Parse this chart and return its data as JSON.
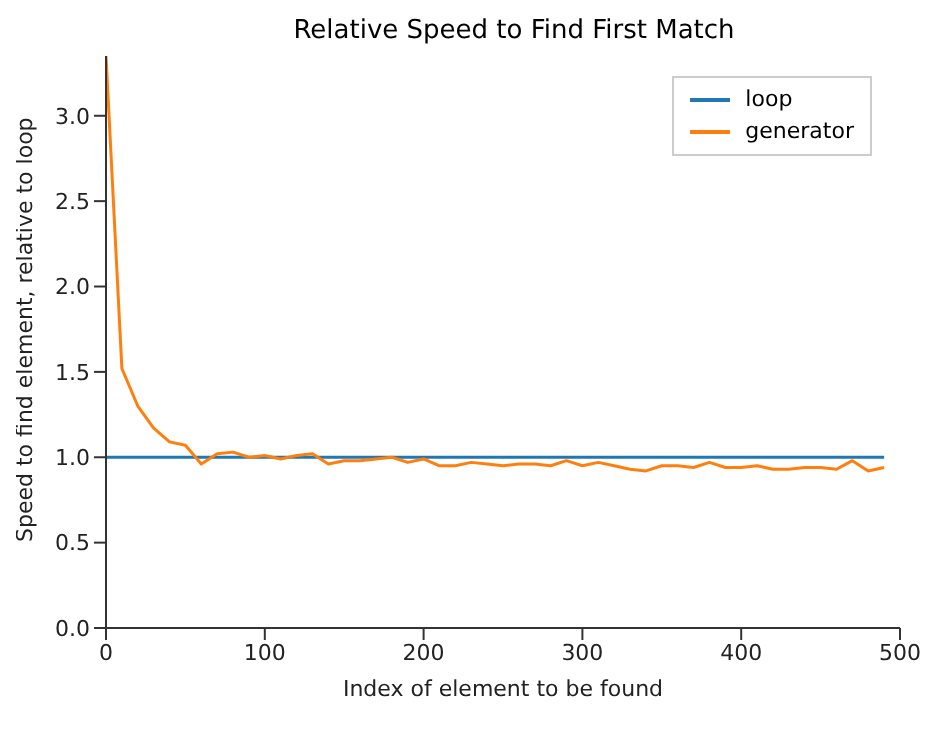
{
  "chart_data": {
    "type": "line",
    "title": "Relative Speed to Find First Match",
    "xlabel": "Index of element to be found",
    "ylabel": "Speed to find element, relative to loop",
    "x": [
      0,
      10,
      20,
      30,
      40,
      50,
      60,
      70,
      80,
      90,
      100,
      110,
      120,
      130,
      140,
      150,
      160,
      170,
      180,
      190,
      200,
      210,
      220,
      230,
      240,
      250,
      260,
      270,
      280,
      290,
      300,
      310,
      320,
      330,
      340,
      350,
      360,
      370,
      380,
      390,
      400,
      410,
      420,
      430,
      440,
      450,
      460,
      470,
      480,
      490
    ],
    "series": [
      {
        "name": "loop",
        "color": "#1f77b4",
        "values": [
          1,
          1,
          1,
          1,
          1,
          1,
          1,
          1,
          1,
          1,
          1,
          1,
          1,
          1,
          1,
          1,
          1,
          1,
          1,
          1,
          1,
          1,
          1,
          1,
          1,
          1,
          1,
          1,
          1,
          1,
          1,
          1,
          1,
          1,
          1,
          1,
          1,
          1,
          1,
          1,
          1,
          1,
          1,
          1,
          1,
          1,
          1,
          1,
          1,
          1
        ]
      },
      {
        "name": "generator",
        "color": "#ff7f0e",
        "values": [
          3.35,
          1.52,
          1.3,
          1.17,
          1.09,
          1.07,
          0.96,
          1.02,
          1.03,
          1.0,
          1.01,
          0.99,
          1.01,
          1.02,
          0.96,
          0.98,
          0.98,
          0.99,
          1.0,
          0.97,
          0.99,
          0.95,
          0.95,
          0.97,
          0.96,
          0.95,
          0.96,
          0.96,
          0.95,
          0.98,
          0.95,
          0.97,
          0.95,
          0.93,
          0.92,
          0.95,
          0.95,
          0.94,
          0.97,
          0.94,
          0.94,
          0.95,
          0.93,
          0.93,
          0.94,
          0.94,
          0.93,
          0.98,
          0.92,
          0.94
        ]
      }
    ],
    "xlim": [
      0,
      500
    ],
    "xticks": [
      0,
      100,
      200,
      300,
      400,
      500
    ],
    "ylim": [
      0,
      3.35
    ],
    "yticks": [
      {
        "value": 0,
        "label": "0.0"
      },
      0.5,
      {
        "value": 1,
        "label": "1.0"
      },
      1.5,
      {
        "value": 2,
        "label": "2.0"
      },
      2.5,
      {
        "value": 3,
        "label": "3.0"
      }
    ],
    "legend": "top right",
    "marker": "none",
    "line_style": "solid",
    "grid": false
  }
}
